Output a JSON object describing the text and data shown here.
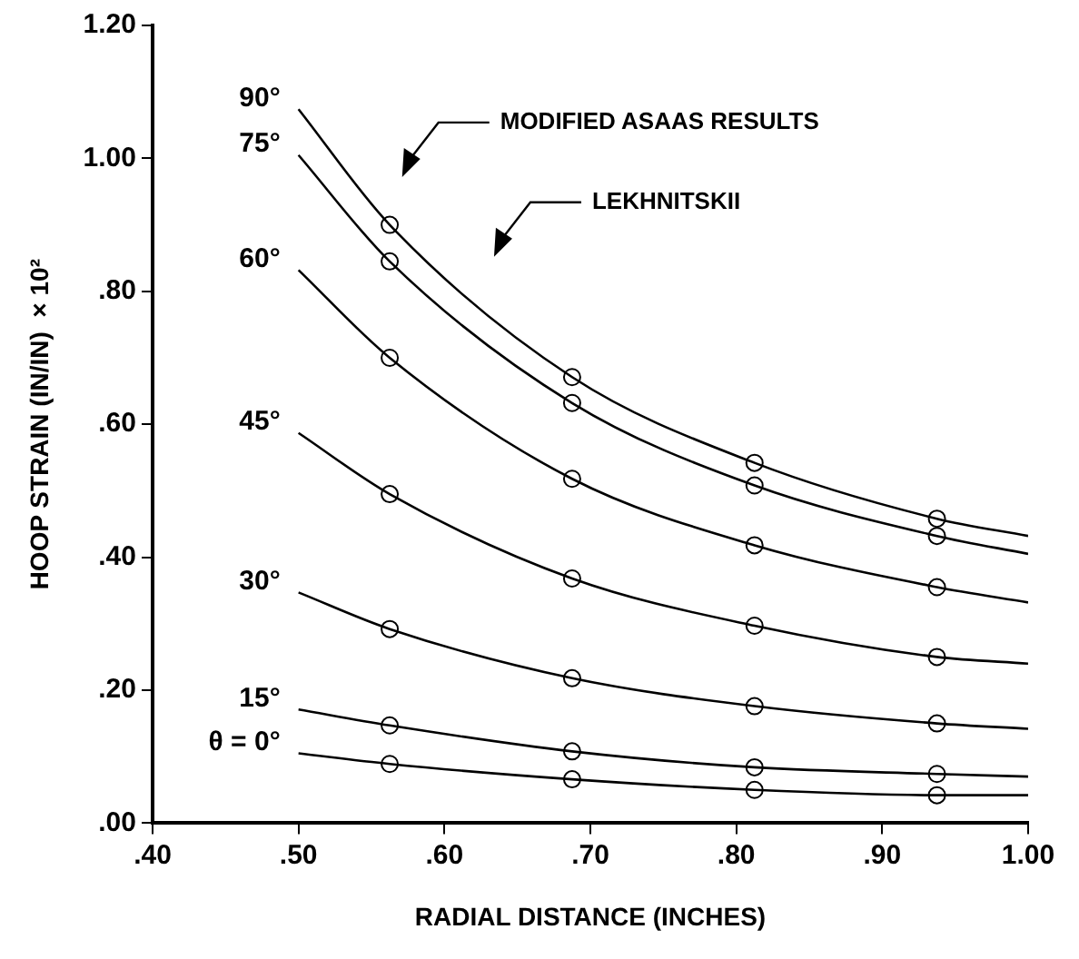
{
  "chart_data": {
    "type": "line",
    "xlabel": "RADIAL DISTANCE (INCHES)",
    "ylabel": "HOOP STRAIN (IN/IN)  × 10²",
    "xlim": [
      0.4,
      1.0
    ],
    "xticks": [
      {
        "value": 0.4,
        "label": ".40"
      },
      {
        "value": 0.5,
        "label": ".50"
      },
      {
        "value": 0.6,
        "label": ".60"
      },
      {
        "value": 0.7,
        "label": ".70"
      },
      {
        "value": 0.8,
        "label": ".80"
      },
      {
        "value": 0.9,
        "label": ".90"
      },
      {
        "value": 1.0,
        "label": "1.00"
      }
    ],
    "ylim": [
      0,
      1.2
    ],
    "yticks": [
      {
        "value": 0,
        "label": ".00"
      },
      {
        "value": 0.2,
        "label": ".20"
      },
      {
        "value": 0.4,
        "label": ".40"
      },
      {
        "value": 0.6,
        "label": ".60"
      },
      {
        "value": 0.8,
        "label": ".80"
      },
      {
        "value": 1.0,
        "label": "1.00"
      },
      {
        "value": 1.2,
        "label": "1.20"
      }
    ],
    "grid": false,
    "legend": false,
    "line_style": "solid",
    "x": [
      0.5,
      0.5625,
      0.6875,
      0.8125,
      0.9375,
      1.0
    ],
    "series": [
      {
        "name": "90°",
        "color": "#000000",
        "marker": "none",
        "values": [
          1.074,
          0.9,
          0.671,
          0.542,
          0.458,
          0.432
        ]
      },
      {
        "name": "75°",
        "color": "#000000",
        "marker": "none",
        "values": [
          1.005,
          0.845,
          0.632,
          0.508,
          0.432,
          0.405
        ]
      },
      {
        "name": "60°",
        "color": "#000000",
        "marker": "none",
        "values": [
          0.832,
          0.7,
          0.518,
          0.418,
          0.355,
          0.332
        ]
      },
      {
        "name": "45°",
        "color": "#000000",
        "marker": "none",
        "values": [
          0.587,
          0.495,
          0.368,
          0.297,
          0.25,
          0.24
        ]
      },
      {
        "name": "30°",
        "color": "#000000",
        "marker": "none",
        "values": [
          0.347,
          0.292,
          0.218,
          0.176,
          0.15,
          0.142
        ]
      },
      {
        "name": "15°",
        "color": "#000000",
        "marker": "none",
        "values": [
          0.171,
          0.147,
          0.108,
          0.084,
          0.074,
          0.07
        ]
      },
      {
        "name": "θ = 0°",
        "color": "#000000",
        "marker": "none",
        "values": [
          0.105,
          0.089,
          0.066,
          0.05,
          0.042,
          0.042
        ]
      },
      {
        "color": "#000000",
        "type": "scatter",
        "marker": "circle",
        "x": [
          0.5625,
          0.6875,
          0.8125,
          0.9375,
          0.5625,
          0.6875,
          0.8125,
          0.9375,
          0.5625,
          0.6875,
          0.8125,
          0.9375,
          0.5625,
          0.6875,
          0.8125,
          0.9375,
          0.5625,
          0.6875,
          0.8125,
          0.9375,
          0.5625,
          0.6875,
          0.8125,
          0.9375,
          0.5625,
          0.6875,
          0.8125,
          0.9375
        ],
        "values": [
          0.9,
          0.671,
          0.542,
          0.458,
          0.845,
          0.632,
          0.508,
          0.432,
          0.7,
          0.518,
          0.418,
          0.355,
          0.495,
          0.368,
          0.297,
          0.25,
          0.292,
          0.218,
          0.176,
          0.15,
          0.147,
          0.108,
          0.084,
          0.074,
          0.089,
          0.066,
          0.05,
          0.042
        ]
      }
    ],
    "annotations": [
      "MODIFIED ASAAS RESULTS",
      "LEKHNITSKII"
    ]
  }
}
